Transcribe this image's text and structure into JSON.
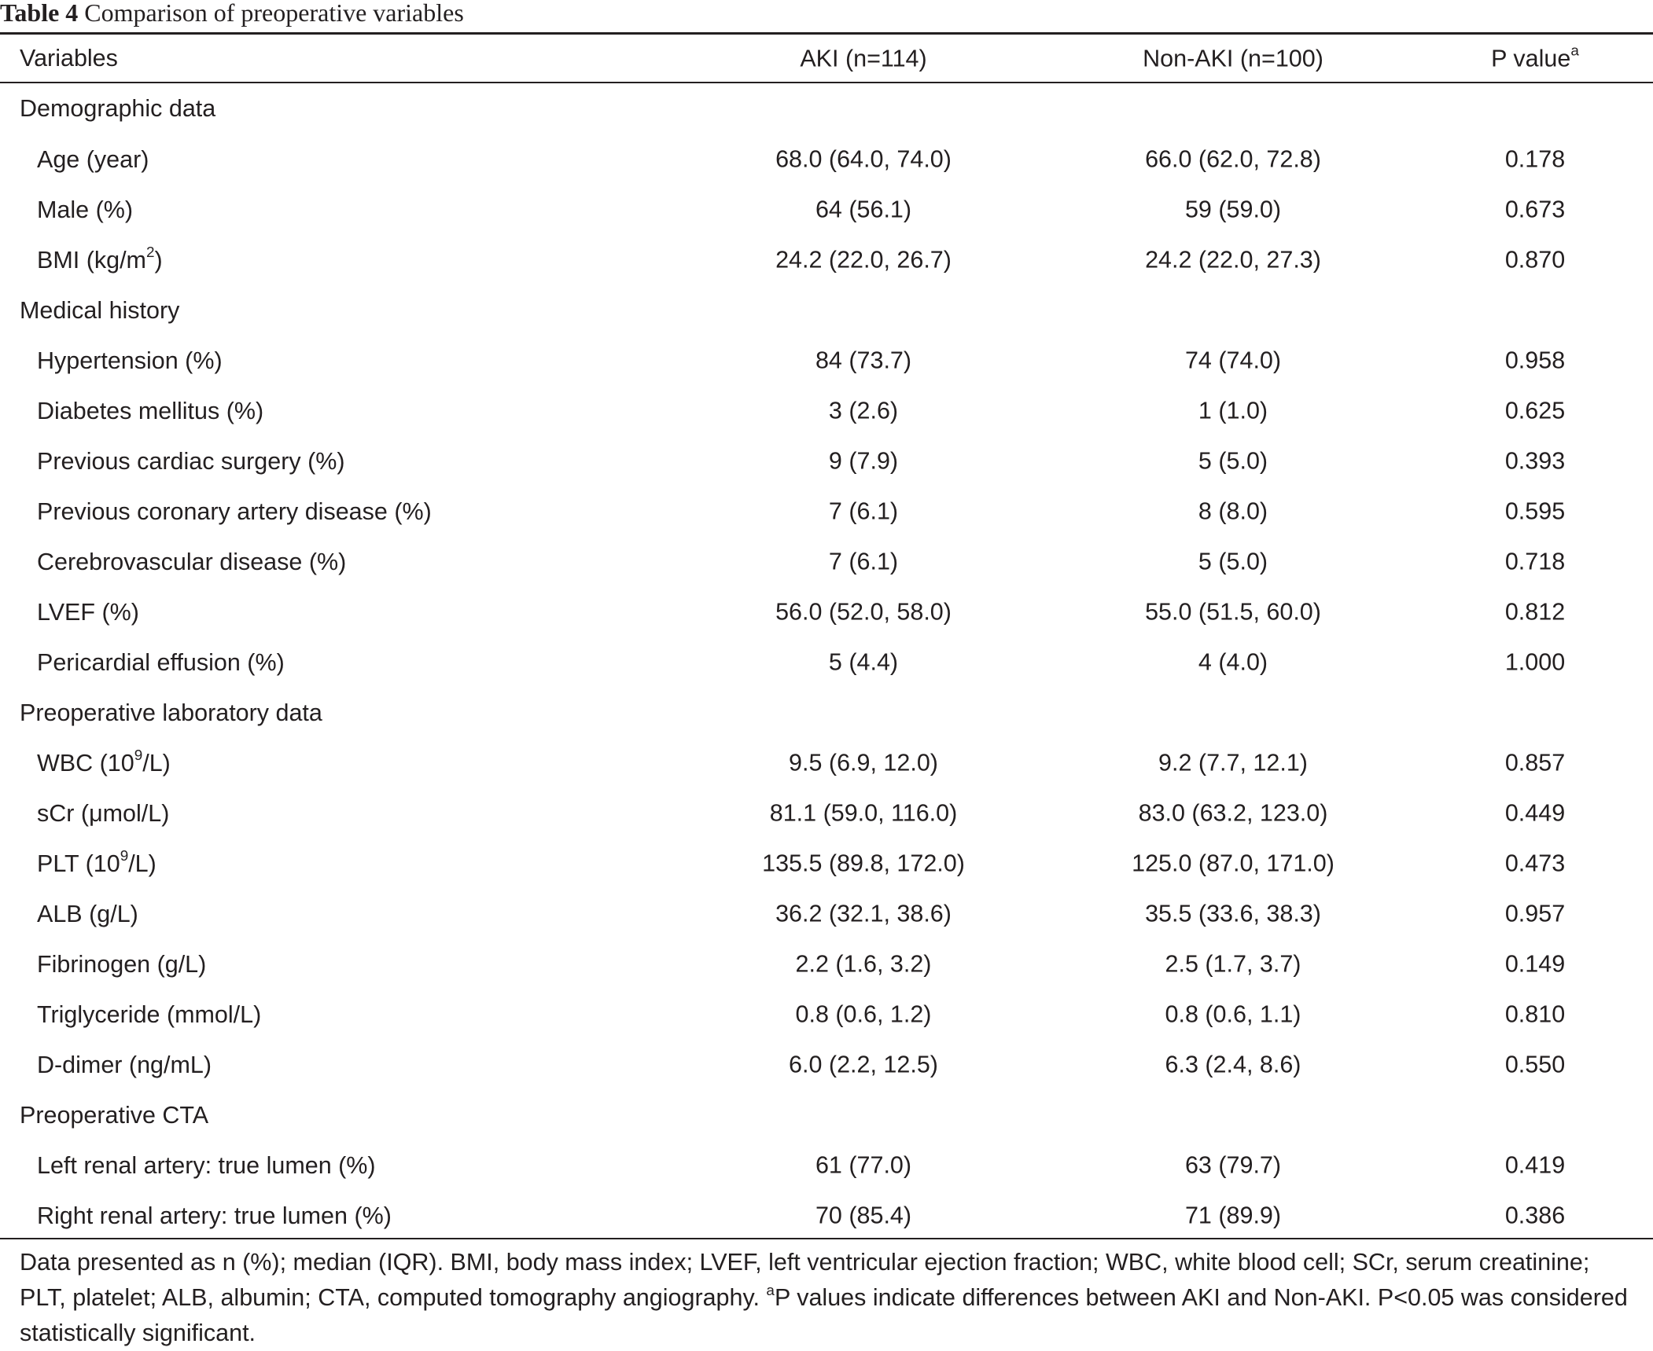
{
  "caption": {
    "label": "Table 4",
    "text": "Comparison of preoperative variables"
  },
  "header": {
    "variables": "Variables",
    "aki": "AKI (n=114)",
    "non_aki": "Non-AKI (n=100)",
    "p_value": "P value",
    "p_value_sup": "a"
  },
  "rows": [
    {
      "kind": "section",
      "label": "Demographic data"
    },
    {
      "kind": "item",
      "label": "Age (year)",
      "aki": "68.0 (64.0, 74.0)",
      "non_aki": "66.0 (62.0, 72.8)",
      "p": "0.178"
    },
    {
      "kind": "item",
      "label": "Male (%)",
      "aki": "64 (56.1)",
      "non_aki": "59 (59.0)",
      "p": "0.673"
    },
    {
      "kind": "item",
      "label": "BMI (kg/m",
      "label_sup": "2",
      "label_after": ")",
      "aki": "24.2 (22.0, 26.7)",
      "non_aki": "24.2 (22.0, 27.3)",
      "p": "0.870"
    },
    {
      "kind": "section",
      "label": "Medical history"
    },
    {
      "kind": "item",
      "label": "Hypertension (%)",
      "aki": "84 (73.7)",
      "non_aki": "74 (74.0)",
      "p": "0.958"
    },
    {
      "kind": "item",
      "label": "Diabetes mellitus (%)",
      "aki": "3 (2.6)",
      "non_aki": "1 (1.0)",
      "p": "0.625"
    },
    {
      "kind": "item",
      "label": "Previous cardiac surgery (%)",
      "aki": "9 (7.9)",
      "non_aki": "5 (5.0)",
      "p": "0.393"
    },
    {
      "kind": "item",
      "label": "Previous coronary artery disease (%)",
      "aki": "7 (6.1)",
      "non_aki": "8 (8.0)",
      "p": "0.595"
    },
    {
      "kind": "item",
      "label": "Cerebrovascular disease (%)",
      "aki": "7 (6.1)",
      "non_aki": "5 (5.0)",
      "p": "0.718"
    },
    {
      "kind": "item",
      "label": "LVEF (%)",
      "aki": "56.0 (52.0, 58.0)",
      "non_aki": "55.0 (51.5, 60.0)",
      "p": "0.812"
    },
    {
      "kind": "item",
      "label": "Pericardial effusion (%)",
      "aki": "5 (4.4)",
      "non_aki": "4 (4.0)",
      "p": "1.000"
    },
    {
      "kind": "section",
      "label": "Preoperative laboratory data"
    },
    {
      "kind": "item",
      "label": "WBC (10",
      "label_sup": "9",
      "label_after": "/L)",
      "aki": "9.5 (6.9, 12.0)",
      "non_aki": "9.2 (7.7, 12.1)",
      "p": "0.857"
    },
    {
      "kind": "item",
      "label": "sCr (μmol/L)",
      "aki": "81.1 (59.0, 116.0)",
      "non_aki": "83.0 (63.2, 123.0)",
      "p": "0.449"
    },
    {
      "kind": "item",
      "label": "PLT (10",
      "label_sup": "9",
      "label_after": "/L)",
      "aki": "135.5 (89.8, 172.0)",
      "non_aki": "125.0 (87.0, 171.0)",
      "p": "0.473"
    },
    {
      "kind": "item",
      "label": "ALB (g/L)",
      "aki": "36.2 (32.1, 38.6)",
      "non_aki": "35.5 (33.6, 38.3)",
      "p": "0.957"
    },
    {
      "kind": "item",
      "label": "Fibrinogen (g/L)",
      "aki": "2.2 (1.6, 3.2)",
      "non_aki": "2.5 (1.7, 3.7)",
      "p": "0.149"
    },
    {
      "kind": "item",
      "label": "Triglyceride (mmol/L)",
      "aki": "0.8 (0.6, 1.2)",
      "non_aki": "0.8 (0.6, 1.1)",
      "p": "0.810"
    },
    {
      "kind": "item",
      "label": "D-dimer (ng/mL)",
      "aki": "6.0 (2.2, 12.5)",
      "non_aki": "6.3 (2.4, 8.6)",
      "p": "0.550"
    },
    {
      "kind": "section",
      "label": "Preoperative CTA"
    },
    {
      "kind": "item",
      "label": "Left renal artery: true lumen (%)",
      "aki": "61 (77.0)",
      "non_aki": "63 (79.7)",
      "p": "0.419"
    },
    {
      "kind": "item",
      "label": "Right renal artery: true lumen (%)",
      "aki": "70 (85.4)",
      "non_aki": "71 (89.9)",
      "p": "0.386"
    }
  ],
  "footnote": {
    "text_before": "Data presented as n (%); median (IQR). BMI, body mass index; LVEF, left ventricular ejection fraction; WBC, white blood cell; SCr, serum creatinine; PLT, platelet; ALB, albumin; CTA, computed tomography angiography. ",
    "sup": "a",
    "text_after": "P values indicate differences between AKI and Non-AKI. P<0.05 was considered statistically significant."
  }
}
